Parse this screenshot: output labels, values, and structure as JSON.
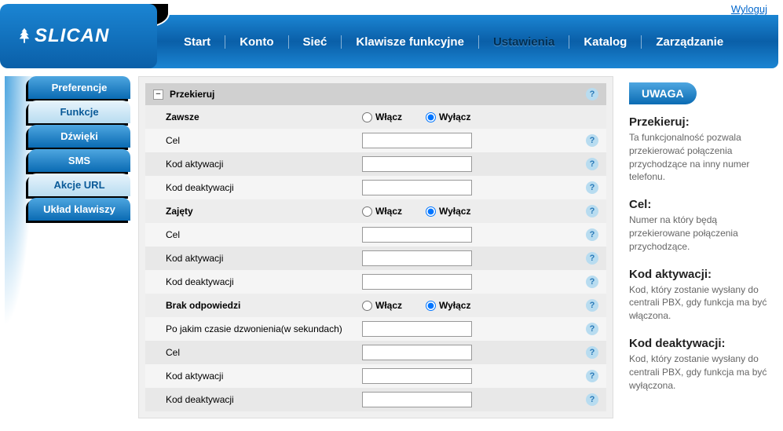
{
  "topbar": {
    "logout": "Wyloguj"
  },
  "logo": {
    "text": "SLICAN"
  },
  "nav": {
    "items": [
      {
        "label": "Start"
      },
      {
        "label": "Konto"
      },
      {
        "label": "Sieć"
      },
      {
        "label": "Klawisze funkcyjne"
      },
      {
        "label": "Ustawienia",
        "active": true
      },
      {
        "label": "Katalog"
      },
      {
        "label": "Zarządzanie"
      }
    ]
  },
  "sidebar": {
    "items": [
      {
        "label": "Preferencje",
        "style": "main"
      },
      {
        "label": "Funkcje",
        "style": "alt"
      },
      {
        "label": "Dźwięki",
        "style": "main"
      },
      {
        "label": "SMS",
        "style": "main"
      },
      {
        "label": "Akcje URL",
        "style": "alt"
      },
      {
        "label": "Układ klawiszy",
        "style": "main"
      }
    ]
  },
  "form": {
    "section_title": "Przekieruj",
    "on_label": "Włącz",
    "off_label": "Wyłącz",
    "groups": [
      {
        "title": "Zawsze",
        "type": "toggle",
        "rows": [
          {
            "label": "Cel",
            "value": ""
          },
          {
            "label": "Kod aktywacji",
            "value": ""
          },
          {
            "label": "Kod deaktywacji",
            "value": ""
          }
        ]
      },
      {
        "title": "Zajęty",
        "type": "toggle",
        "rows": [
          {
            "label": "Cel",
            "value": ""
          },
          {
            "label": "Kod aktywacji",
            "value": ""
          },
          {
            "label": "Kod deaktywacji",
            "value": ""
          }
        ]
      },
      {
        "title": "Brak odpowiedzi",
        "type": "toggle",
        "rows": [
          {
            "label": "Po jakim czasie dzwonienia(w sekundach)",
            "value": ""
          },
          {
            "label": "Cel",
            "value": ""
          },
          {
            "label": "Kod aktywacji",
            "value": ""
          },
          {
            "label": "Kod deaktywacji",
            "value": ""
          }
        ]
      }
    ]
  },
  "notice": {
    "header": "UWAGA",
    "blocks": [
      {
        "title": "Przekieruj:",
        "text": "Ta funkcjonalność pozwala przekierować połączenia przychodzące na inny numer telefonu."
      },
      {
        "title": "Cel:",
        "text": "Numer na który będą przekierowane połączenia przychodzące."
      },
      {
        "title": "Kod aktywacji:",
        "text": "Kod, który zostanie wysłany do centrali PBX, gdy funkcja ma być włączona."
      },
      {
        "title": "Kod deaktywacji:",
        "text": "Kod, który zostanie wysłany do centrali PBX, gdy funkcja ma być wyłączona."
      }
    ]
  },
  "colors": {
    "brand_blue_light": "#4ea6e0",
    "brand_blue_dark": "#0a6bb3",
    "link": "#0066cc",
    "panel_bg": "#f0f0f0"
  }
}
